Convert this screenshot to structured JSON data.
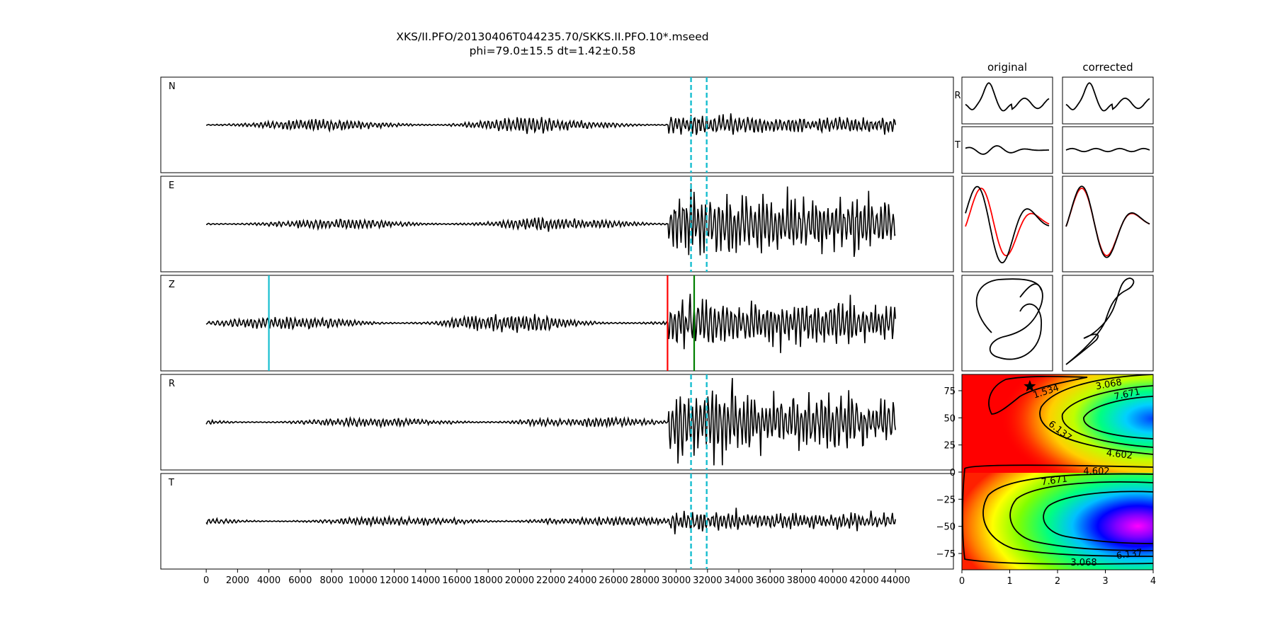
{
  "title_line1": "XKS/II.PFO/20130406T044235.70/SKKS.II.PFO.10*.mseed",
  "title_line2": "phi=79.0±15.5 dt=1.42±0.58",
  "traces": [
    {
      "label": "N",
      "seed": 11,
      "amp": 0.09,
      "burst_amp": 0.14
    },
    {
      "label": "E",
      "seed": 23,
      "amp": 0.08,
      "burst_amp": 0.48
    },
    {
      "label": "Z",
      "seed": 37,
      "amp": 0.1,
      "burst_amp": 0.38
    },
    {
      "label": "R",
      "seed": 41,
      "amp": 0.07,
      "burst_amp": 0.48
    },
    {
      "label": "T",
      "seed": 53,
      "amp": 0.07,
      "burst_amp": 0.14
    }
  ],
  "chart_data": [
    {
      "type": "line",
      "description_id": "seismogram-panels",
      "x_range": [
        0,
        44000
      ],
      "xticks": [
        0,
        2000,
        4000,
        6000,
        8000,
        10000,
        12000,
        14000,
        16000,
        18000,
        20000,
        22000,
        24000,
        26000,
        28000,
        30000,
        32000,
        34000,
        36000,
        38000,
        40000,
        42000,
        44000
      ],
      "window_markers_x": [
        30950,
        31950
      ],
      "window_marker_color": "#17becf",
      "z_picks": [
        {
          "x": 4000,
          "color": "#17becf"
        },
        {
          "x": 29450,
          "color": "#ff0000"
        },
        {
          "x": 31150,
          "color": "#008000"
        }
      ],
      "trace_color": "#000000"
    },
    {
      "type": "line",
      "panels": {
        "col_titles": [
          "original",
          "corrected"
        ],
        "row_labels": [
          "R",
          "T"
        ]
      },
      "particle_motion_colors": [
        "#ff0000",
        "#000000"
      ]
    },
    {
      "type": "heatmap",
      "xlim": [
        0,
        4
      ],
      "ylim": [
        -90,
        90
      ],
      "xticks": [
        "0",
        "1",
        "2",
        "3",
        "4"
      ],
      "yticks": [
        "75",
        "50",
        "25",
        "0",
        "−25",
        "−50",
        "−75"
      ],
      "ytick_values": [
        75,
        50,
        25,
        0,
        -25,
        -50,
        -75
      ],
      "contour_labels": [
        "1.534",
        "3.068",
        "7.671",
        "6.137",
        "4.602",
        "4.602",
        "7.671",
        "6.137",
        "3.068"
      ],
      "best": {
        "dt": 1.42,
        "phi": 79.0
      },
      "colormap": "hsv"
    }
  ]
}
